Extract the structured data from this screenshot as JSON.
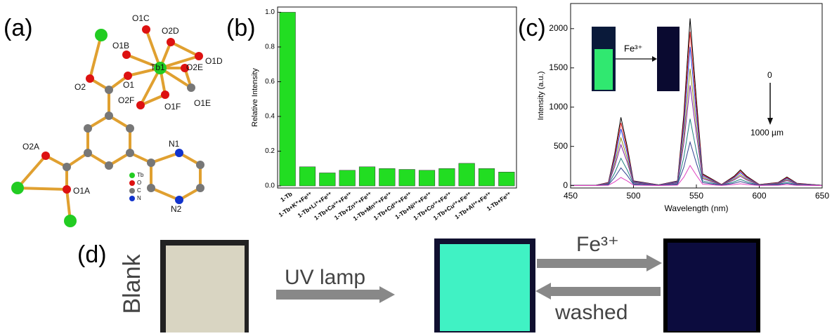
{
  "panel_labels": [
    "(a)",
    "(b)",
    "(c)",
    "(d)"
  ],
  "structure": {
    "atom_labels": [
      "O1C",
      "O2D",
      "O1B",
      "O1D",
      "Tb1",
      "O2E",
      "O1",
      "O1E",
      "O1F",
      "O2F",
      "O2",
      "O2A",
      "O1A",
      "N1",
      "N2"
    ],
    "legend": [
      "Tb",
      "O",
      "C",
      "N"
    ]
  },
  "chart_data": [
    {
      "type": "bar",
      "y_label": "Relative Intensity",
      "categories": [
        "1-Tb",
        "1-Tb+K⁺+Fe³⁺",
        "1-Tb+Li⁺+Fe³⁺",
        "1-Tb+Ca²⁺+Fe³⁺",
        "1-Tb+Zn²⁺+Fe³⁺",
        "1-Tb+Mn²⁺+Fe³⁺",
        "1-Tb+Cd²⁺+Fe³⁺",
        "1-Tb+Ni²⁺+Fe³⁺",
        "1-Tb+Co²⁺+Fe³⁺",
        "1-Tb+Cu²⁺+Fe³⁺",
        "1-Tb+Al³⁺+Fe³⁺",
        "1-Tb+Fe³⁺"
      ],
      "values": [
        1.0,
        0.11,
        0.075,
        0.09,
        0.11,
        0.1,
        0.095,
        0.09,
        0.1,
        0.13,
        0.1,
        0.08
      ],
      "color": "#22dd22",
      "ylim": [
        -0.012,
        1.03
      ],
      "yticks": [
        {
          "value": 0,
          "label": "0.0"
        },
        0.2,
        0.4,
        0.6,
        0.8,
        {
          "value": 1,
          "label": "1.0"
        }
      ]
    },
    {
      "type": "line",
      "x_label": "Wavelength (nm)",
      "y_label": "Intensity (a.u.)",
      "x": [
        450,
        470,
        480,
        485,
        490,
        495,
        500,
        520,
        535,
        540,
        545,
        550,
        555,
        570,
        580,
        585,
        590,
        600,
        615,
        622,
        630,
        650
      ],
      "series": [
        {
          "color": "#000000",
          "values": [
            5,
            5,
            40,
            400,
            870,
            500,
            60,
            10,
            60,
            900,
            2130,
            1100,
            150,
            15,
            120,
            200,
            120,
            15,
            40,
            110,
            30,
            5
          ]
        },
        {
          "color": "#e02020",
          "values": [
            5,
            5,
            37,
            368,
            800,
            460,
            55,
            9,
            55,
            828,
            1960,
            1012,
            138,
            14,
            110,
            184,
            110,
            14,
            37,
            101,
            28,
            5
          ]
        },
        {
          "color": "#2040e0",
          "values": [
            4,
            4,
            33,
            332,
            722,
            415,
            50,
            8,
            50,
            747,
            1768,
            913,
            125,
            12,
            100,
            166,
            100,
            12,
            33,
            91,
            25,
            4
          ]
        },
        {
          "color": "#909020",
          "values": [
            4,
            4,
            28,
            280,
            609,
            350,
            42,
            7,
            42,
            630,
            1491,
            770,
            105,
            11,
            84,
            140,
            84,
            11,
            28,
            77,
            21,
            4
          ]
        },
        {
          "color": "#8020a0",
          "values": [
            3,
            3,
            24,
            240,
            522,
            300,
            36,
            6,
            36,
            540,
            1278,
            660,
            90,
            9,
            72,
            120,
            72,
            9,
            24,
            66,
            18,
            3
          ]
        },
        {
          "color": "#208080",
          "values": [
            2,
            2,
            16,
            160,
            348,
            200,
            24,
            4,
            24,
            360,
            852,
            440,
            60,
            6,
            48,
            80,
            48,
            6,
            16,
            44,
            12,
            2
          ]
        },
        {
          "color": "#304090",
          "values": [
            1,
            1,
            10,
            104,
            226,
            130,
            16,
            3,
            16,
            234,
            554,
            286,
            39,
            4,
            31,
            52,
            31,
            4,
            10,
            29,
            8,
            1
          ]
        },
        {
          "color": "#e040c0",
          "values": [
            1,
            1,
            5,
            48,
            104,
            60,
            7,
            1,
            7,
            108,
            256,
            132,
            18,
            2,
            14,
            24,
            14,
            2,
            5,
            13,
            4,
            1
          ]
        }
      ],
      "xlim": [
        450,
        650
      ],
      "xticks": [
        450,
        500,
        550,
        600,
        650
      ],
      "ylim": [
        -30,
        2320
      ],
      "yticks": [
        0,
        500,
        1000,
        1500,
        2000
      ],
      "annotations": [
        "0",
        "1000 µm"
      ],
      "inset_label": "Fe³⁺"
    }
  ],
  "photos": {
    "side_label": "Blank",
    "arrow_labels": [
      "UV lamp",
      "Fe³⁺",
      "washed"
    ]
  }
}
